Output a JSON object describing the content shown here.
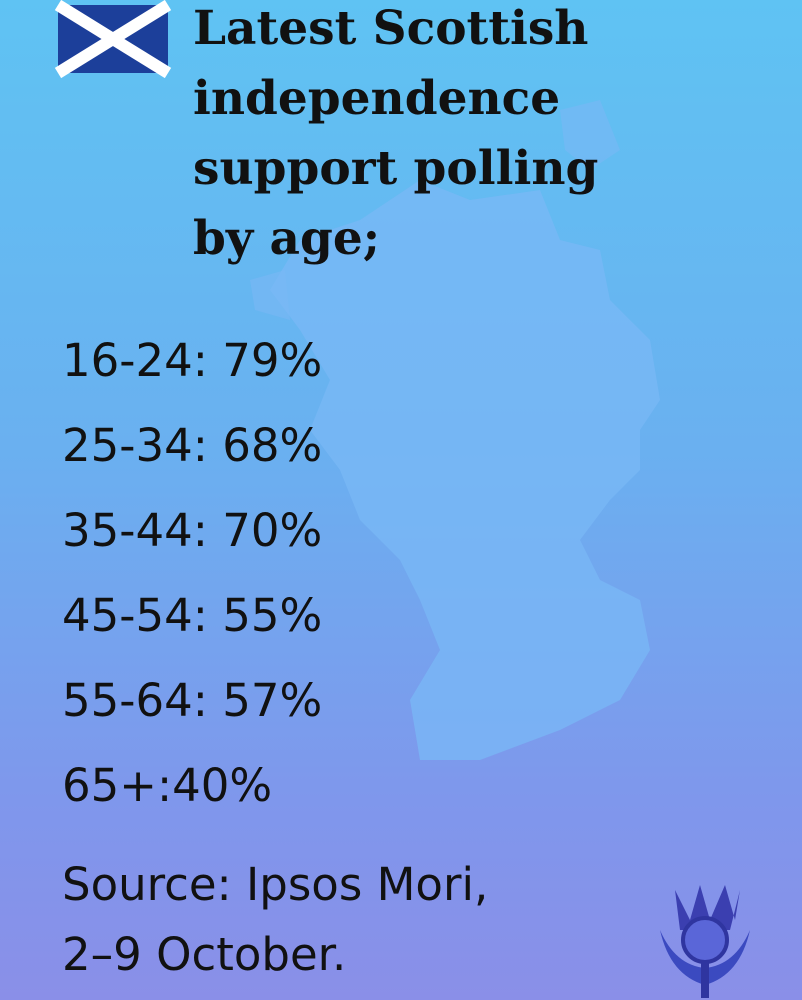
{
  "header": {
    "title_lines": [
      "Latest Scottish",
      "independence",
      "support polling",
      "by age;"
    ]
  },
  "rows": [
    "16-24: 79%",
    "25-34: 68%",
    "35-44: 70%",
    "45-54: 55%",
    "55-64: 57%",
    "65+:40%"
  ],
  "source_lines": [
    "Source: Ipsos Mori,",
    "2–9 October."
  ]
}
